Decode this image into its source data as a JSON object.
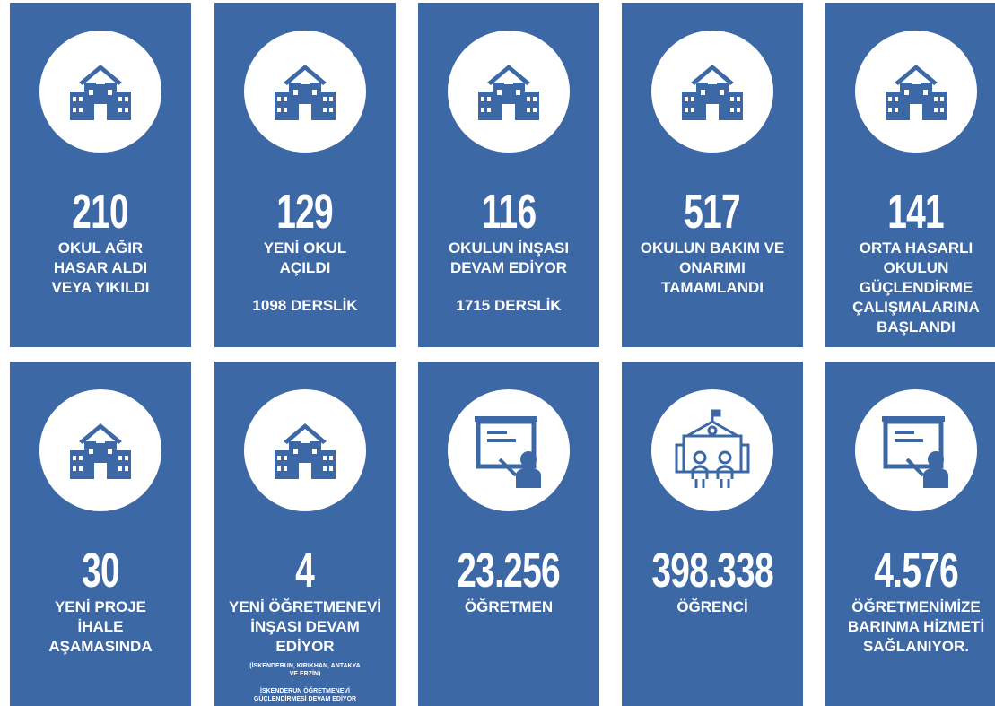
{
  "cards": [
    {
      "icon": "school",
      "number": "210",
      "lines": [
        "OKUL AĞIR",
        "HASAR ALDI",
        "VEYA YIKILDI"
      ]
    },
    {
      "icon": "school",
      "number": "129",
      "lines": [
        "YENİ OKUL",
        "AÇILDI"
      ],
      "extra": [
        "1098 DERSLİK"
      ]
    },
    {
      "icon": "school",
      "number": "116",
      "lines": [
        "OKULUN İNŞASI",
        "DEVAM EDİYOR"
      ],
      "extra": [
        "1715 DERSLİK"
      ]
    },
    {
      "icon": "school",
      "number": "517",
      "lines": [
        "OKULUN BAKIM VE",
        "ONARIMI",
        "TAMAMLANDI"
      ]
    },
    {
      "icon": "school",
      "number": "141",
      "lines": [
        "ORTA HASARLI",
        "OKULUN",
        "GÜÇLENDİRME",
        "ÇALIŞMALARINA",
        "BAŞLANDI"
      ]
    },
    {
      "icon": "school",
      "number": "30",
      "lines": [
        "YENİ PROJE",
        "İHALE",
        "AŞAMASINDA"
      ]
    },
    {
      "icon": "school",
      "number": "4",
      "lines": [
        "YENİ ÖĞRETMENEVİ",
        "İNŞASI DEVAM",
        "EDİYOR"
      ],
      "note": [
        "(İSKENDERUN, KIRIKHAN, ANTAKYA",
        "VE ERZİN)"
      ],
      "note2": [
        "İSKENDERUN ÖĞRETMENEVİ",
        "GÜÇLENDİRMESİ DEVAM EDİYOR"
      ]
    },
    {
      "icon": "teacher",
      "number": "23.256",
      "lines": [
        "ÖĞRETMEN"
      ]
    },
    {
      "icon": "students",
      "number": "398.338",
      "lines": [
        "ÖĞRENCİ"
      ]
    },
    {
      "icon": "teacher",
      "number": "4.576",
      "lines": [
        "ÖĞRETMENİMİZE",
        "BARINMA HİZMETİ",
        "SAĞLANIYOR."
      ]
    }
  ]
}
